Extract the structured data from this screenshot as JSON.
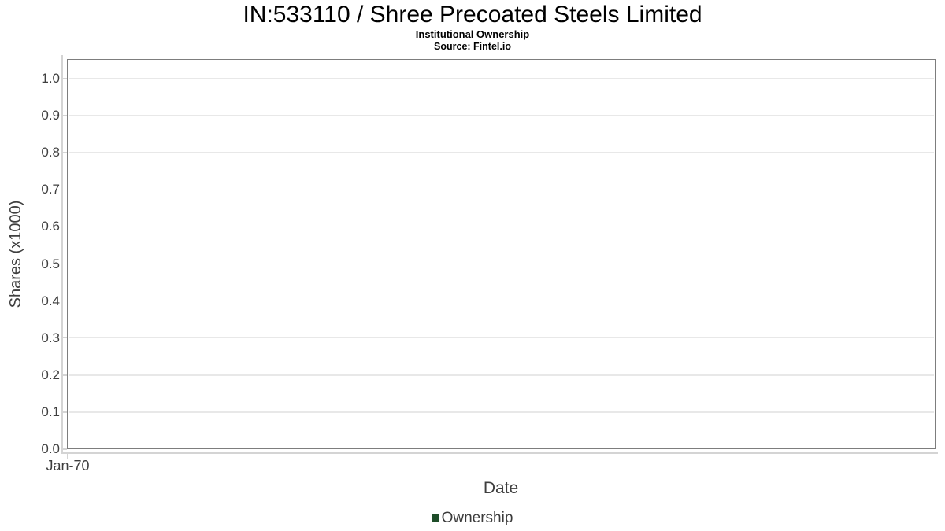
{
  "header": {
    "title": "IN:533110 / Shree Precoated Steels Limited",
    "subtitle": "Institutional Ownership",
    "source": "Source: Fintel.io"
  },
  "legend": {
    "items": [
      {
        "label": "Ownership",
        "marker_color": "#1e4d29"
      }
    ]
  },
  "chart_data": {
    "type": "bar",
    "title": "IN:533110 / Shree Precoated Steels Limited",
    "subtitle": "Institutional Ownership",
    "source": "Source: Fintel.io",
    "xlabel": "Date",
    "ylabel": "Shares (x1000)",
    "x_ticks": [
      "Jan-70"
    ],
    "y_ticks": [
      {
        "label": "0.0",
        "value": 0.0
      },
      {
        "label": "0.1",
        "value": 0.1
      },
      {
        "label": "0.2",
        "value": 0.2
      },
      {
        "label": "0.3",
        "value": 0.3
      },
      {
        "label": "0.4",
        "value": 0.4
      },
      {
        "label": "0.5",
        "value": 0.5
      },
      {
        "label": "0.6",
        "value": 0.6
      },
      {
        "label": "0.7",
        "value": 0.7
      },
      {
        "label": "0.8",
        "value": 0.8
      },
      {
        "label": "0.9",
        "value": 0.9
      },
      {
        "label": "1.0",
        "value": 1.0
      }
    ],
    "ylim": [
      0,
      1.05
    ],
    "grid": "horizontal-only",
    "legend_position": "bottom-center",
    "series": [
      {
        "name": "Ownership",
        "color": "#1e4d29",
        "x": [],
        "values": []
      }
    ],
    "colors": {
      "plot_border": "#7d7d7d",
      "gridline": "#e8e8e8",
      "axis_line": "#d4d4d4",
      "tick_text": "#3f3f3f",
      "title_text": "#000000"
    }
  }
}
